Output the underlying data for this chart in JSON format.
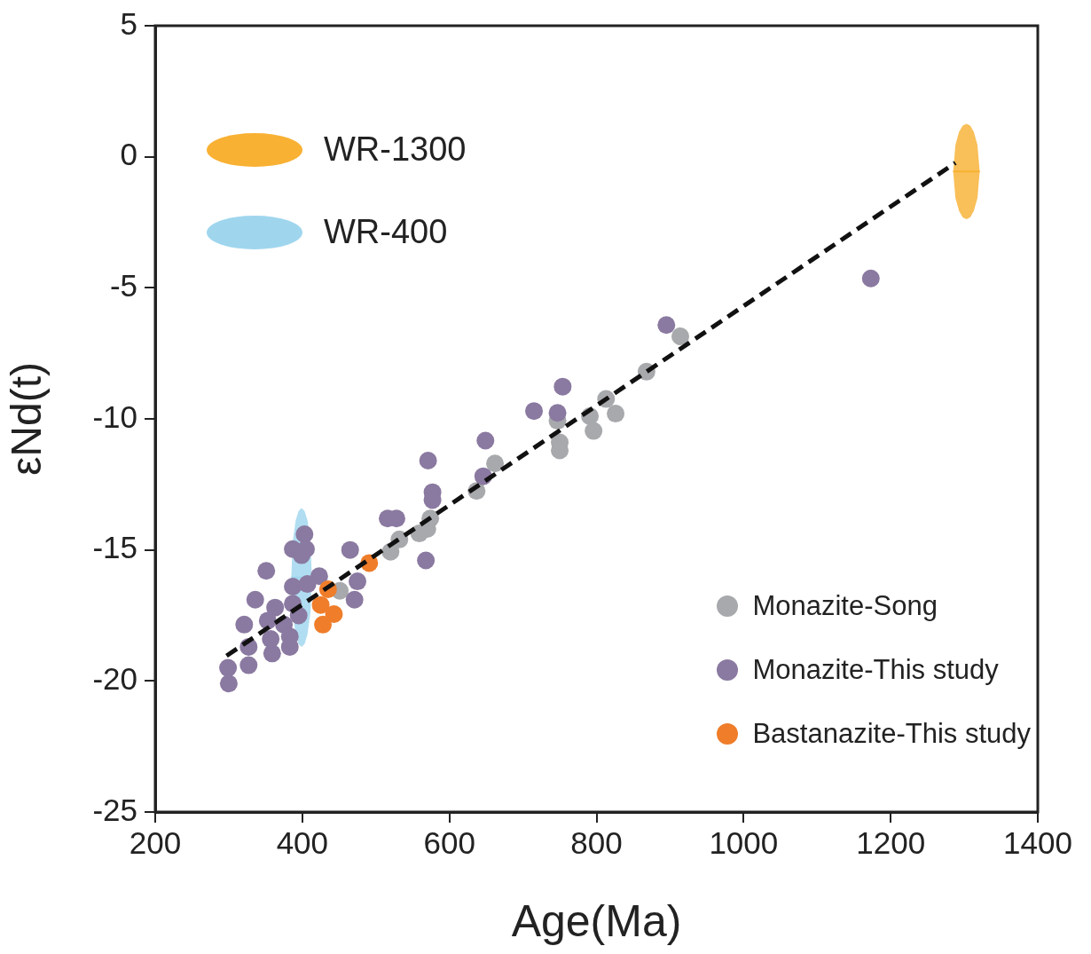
{
  "chart_data": {
    "type": "scatter",
    "xlabel": "Age(Ma)",
    "ylabel": "εNd(t)",
    "xlim": [
      200,
      1400
    ],
    "xticks": [
      200,
      400,
      600,
      800,
      1000,
      1200,
      1400
    ],
    "ylim": [
      -25,
      5
    ],
    "yticks": [
      -25,
      -20,
      -15,
      -10,
      -5,
      0,
      5
    ],
    "grid": false,
    "legend": "bottom right",
    "marker": "circle",
    "series": [
      {
        "name": "WR-1300",
        "type": "line",
        "color": "#f8b133",
        "line_style": "solid",
        "marker": "none",
        "x": [
          1285,
          1288,
          1293,
          1298,
          1303,
          1308,
          1313,
          1318,
          1321
        ],
        "values": [
          -0.56,
          -0.56,
          -0.56,
          -0.56,
          -0.56,
          -0.56,
          -0.56,
          -0.56,
          -0.56
        ],
        "upper": [
          -0.56,
          0.45,
          0.95,
          1.19,
          1.26,
          1.19,
          0.95,
          0.45,
          -0.56
        ],
        "lower": [
          -0.56,
          -1.57,
          -2.07,
          -2.31,
          -2.38,
          -2.31,
          -2.07,
          -1.57,
          -0.56
        ]
      },
      {
        "name": "WR-400",
        "type": "line",
        "color": "#9fd6ee",
        "line_style": "solid",
        "marker": "none",
        "x": [
          385,
          387,
          391,
          395,
          399,
          403,
          407,
          411,
          413
        ],
        "values": [
          -16.05,
          -16.05,
          -16.05,
          -16.05,
          -16.05,
          -16.05,
          -16.05,
          -16.05,
          -16.05
        ],
        "upper": [
          -16.05,
          -14.69,
          -13.87,
          -13.51,
          -13.4,
          -13.51,
          -13.87,
          -14.69,
          -16.05
        ],
        "lower": [
          -16.05,
          -17.41,
          -18.23,
          -18.59,
          -18.7,
          -18.59,
          -18.23,
          -17.41,
          -16.05
        ]
      },
      {
        "type": "line",
        "color": "#111111",
        "line_style": "dashed",
        "marker": "none",
        "x": [
          297,
          1288
        ],
        "values": [
          -19.04,
          -0.23
        ]
      },
      {
        "name": "Monazite-Song",
        "color": "#a7a9ac",
        "x": [
          914,
          868,
          813,
          826,
          791,
          796,
          747,
          750,
          750,
          662,
          637,
          574,
          570,
          559,
          532,
          520,
          451
        ],
        "values": [
          -6.85,
          -8.2,
          -9.24,
          -9.8,
          -9.9,
          -10.46,
          -10.07,
          -10.9,
          -11.2,
          -11.7,
          -12.75,
          -13.8,
          -14.2,
          -14.37,
          -14.6,
          -15.07,
          -16.56
        ]
      },
      {
        "name": "Monazite-This study",
        "color": "#8a79a0",
        "x": [
          1173,
          895,
          754,
          715,
          747,
          649,
          571,
          646,
          577,
          577,
          516,
          528,
          568,
          403,
          387,
          405,
          399,
          465,
          351,
          423,
          475,
          387,
          407,
          336,
          471,
          363,
          387,
          321,
          353,
          375,
          395,
          357,
          383,
          327,
          359,
          383,
          299,
          327,
          300
        ],
        "values": [
          -4.64,
          -6.42,
          -8.77,
          -9.7,
          -9.77,
          -10.83,
          -11.59,
          -12.19,
          -12.8,
          -13.1,
          -13.8,
          -13.8,
          -15.4,
          -14.4,
          -14.97,
          -14.97,
          -15.2,
          -15.0,
          -15.8,
          -16.0,
          -16.2,
          -16.4,
          -16.3,
          -16.9,
          -16.9,
          -17.2,
          -17.05,
          -17.85,
          -17.7,
          -17.85,
          -17.5,
          -18.4,
          -18.3,
          -18.7,
          -18.95,
          -18.7,
          -19.5,
          -19.4,
          -20.1
        ]
      },
      {
        "name": "Bastanazite-This study",
        "color": "#ef7d2a",
        "x": [
          491,
          435,
          425,
          443,
          428
        ],
        "values": [
          -15.5,
          -16.5,
          -17.1,
          -17.45,
          -17.85
        ]
      }
    ]
  }
}
